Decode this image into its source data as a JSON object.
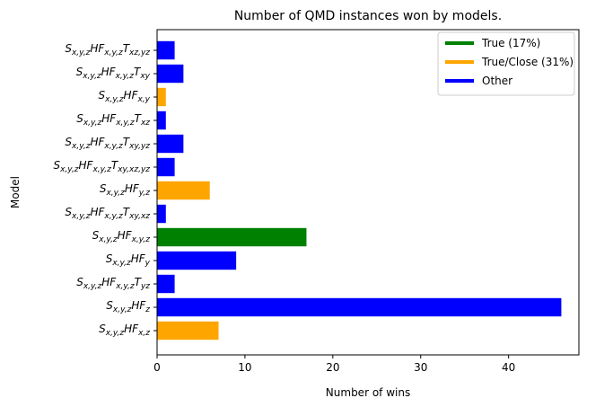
{
  "chart_data": {
    "type": "bar",
    "orientation": "horizontal",
    "title": "Number of QMD instances won by models.",
    "xlabel": "Number of wins",
    "ylabel": "Model",
    "xlim": [
      0,
      48
    ],
    "xticks": [
      0,
      10,
      20,
      30,
      40
    ],
    "categories": [
      {
        "base": "S",
        "base_sub": "x,y,z",
        "mid": "HF",
        "mid_sub": "x,y,z",
        "tail": "T",
        "tail_sub": "xz,yz"
      },
      {
        "base": "S",
        "base_sub": "x,y,z",
        "mid": "HF",
        "mid_sub": "x,y,z",
        "tail": "T",
        "tail_sub": "xy"
      },
      {
        "base": "S",
        "base_sub": "x,y,z",
        "mid": "HF",
        "mid_sub": "x,y",
        "tail": "",
        "tail_sub": ""
      },
      {
        "base": "S",
        "base_sub": "x,y,z",
        "mid": "HF",
        "mid_sub": "x,y,z",
        "tail": "T",
        "tail_sub": "xz"
      },
      {
        "base": "S",
        "base_sub": "x,y,z",
        "mid": "HF",
        "mid_sub": "x,y,z",
        "tail": "T",
        "tail_sub": "xy,yz"
      },
      {
        "base": "S",
        "base_sub": "x,y,z",
        "mid": "HF",
        "mid_sub": "x,y,z",
        "tail": "T",
        "tail_sub": "xy,xz,yz"
      },
      {
        "base": "S",
        "base_sub": "x,y,z",
        "mid": "HF",
        "mid_sub": "y,z",
        "tail": "",
        "tail_sub": ""
      },
      {
        "base": "S",
        "base_sub": "x,y,z",
        "mid": "HF",
        "mid_sub": "x,y,z",
        "tail": "T",
        "tail_sub": "xy,xz"
      },
      {
        "base": "S",
        "base_sub": "x,y,z",
        "mid": "HF",
        "mid_sub": "x,y,z",
        "tail": "",
        "tail_sub": ""
      },
      {
        "base": "S",
        "base_sub": "x,y,z",
        "mid": "HF",
        "mid_sub": "y",
        "tail": "",
        "tail_sub": ""
      },
      {
        "base": "S",
        "base_sub": "x,y,z",
        "mid": "HF",
        "mid_sub": "x,y,z",
        "tail": "T",
        "tail_sub": "yz"
      },
      {
        "base": "S",
        "base_sub": "x,y,z",
        "mid": "HF",
        "mid_sub": "z",
        "tail": "",
        "tail_sub": ""
      },
      {
        "base": "S",
        "base_sub": "x,y,z",
        "mid": "HF",
        "mid_sub": "x,z",
        "tail": "",
        "tail_sub": ""
      }
    ],
    "values": [
      2,
      3,
      1,
      1,
      3,
      2,
      6,
      1,
      17,
      9,
      2,
      46,
      7
    ],
    "bar_groups": [
      "Other",
      "Other",
      "True/Close",
      "Other",
      "Other",
      "Other",
      "True/Close",
      "Other",
      "True",
      "Other",
      "Other",
      "Other",
      "True/Close"
    ],
    "legend": {
      "placement": "top-right",
      "entries": [
        {
          "label": "True (17%)",
          "group": "True",
          "color": "#008000"
        },
        {
          "label": "True/Close (31%)",
          "group": "True/Close",
          "color": "#FFA500"
        },
        {
          "label": "Other",
          "group": "Other",
          "color": "#0000FF"
        }
      ]
    },
    "grid": false
  }
}
